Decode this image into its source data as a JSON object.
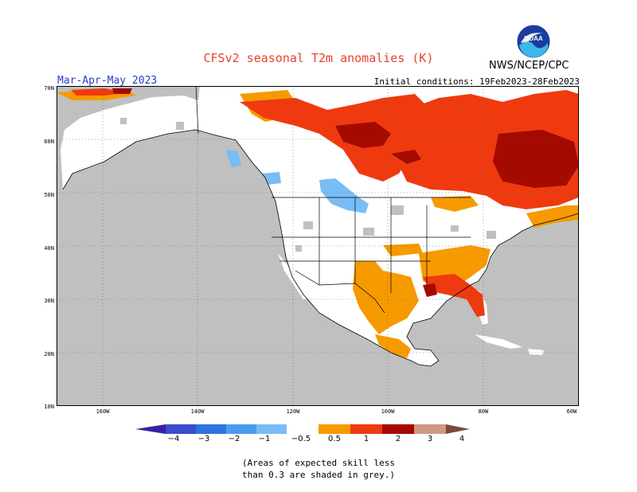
{
  "header": {
    "title": "CFSv2 seasonal T2m anomalies (K)",
    "agency": "NWS/NCEP/CPC",
    "period": "Mar-Apr-May 2023",
    "initial_conditions": "Initial conditions: 19Feb2023-28Feb2023",
    "logo_text": "NOAA"
  },
  "map": {
    "region": "North America",
    "latitude_labels": [
      "70N",
      "60N",
      "50N",
      "40N",
      "30N",
      "20N",
      "10N"
    ],
    "longitude_labels": [
      "160W",
      "140W",
      "120W",
      "100W",
      "80W",
      "60W"
    ],
    "colors": {
      "land_base": "#ffffff",
      "ocean": "#c0c0c0",
      "low_skill": "#c0c0c0"
    }
  },
  "colorbar": {
    "labels": [
      "−4",
      "−3",
      "−2",
      "−1",
      "−0.5",
      "0.5",
      "1",
      "2",
      "3",
      "4"
    ],
    "colors": [
      "#3a1fa6",
      "#3a4cd0",
      "#2f72e0",
      "#4a9cf0",
      "#78bdf6",
      "#ffffff",
      "#f79a00",
      "#ef3a10",
      "#a40a00",
      "#ce9880",
      "#7a4a3a"
    ]
  },
  "footnote": {
    "line1": "(Areas of expected skill less",
    "line2": "than 0.3 are shaded in grey.)"
  }
}
